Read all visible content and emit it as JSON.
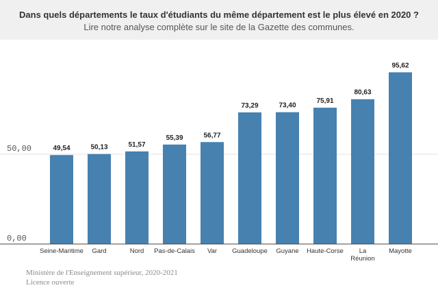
{
  "header": {
    "title": "Dans quels départements le taux d'étudiants du même département est le plus élevé en 2020 ?",
    "subtitle": "Lire notre analyse complète sur le site de la Gazette des communes."
  },
  "footer": {
    "source": "Ministère de l'Enseignement supérieur, 2020-2021",
    "license": "Licence ouverte"
  },
  "colors": {
    "bar": "#4681b0",
    "grid": "#e0e0e0",
    "baseline": "#444444"
  },
  "chart_data": {
    "type": "bar",
    "categories": [
      [
        "Seine-Maritime"
      ],
      [
        "Gard"
      ],
      [
        "Nord"
      ],
      [
        "Pas-de-Calais"
      ],
      [
        "Var"
      ],
      [
        "Guadeloupe"
      ],
      [
        "Guyane"
      ],
      [
        "Haute-Corse"
      ],
      [
        "La",
        "Réunion"
      ],
      [
        "Mayotte"
      ]
    ],
    "values": [
      49.54,
      50.13,
      51.57,
      55.39,
      56.77,
      73.29,
      73.4,
      75.91,
      80.63,
      95.62
    ],
    "value_labels": [
      "49,54",
      "50,13",
      "51,57",
      "55,39",
      "56,77",
      "73,29",
      "73,40",
      "75,91",
      "80,63",
      "95,62"
    ],
    "y_ticks": [
      0,
      50
    ],
    "y_tick_labels": [
      "0,00",
      "50,00"
    ],
    "ylim": [
      0,
      100
    ],
    "grid": true,
    "legend": "none"
  }
}
